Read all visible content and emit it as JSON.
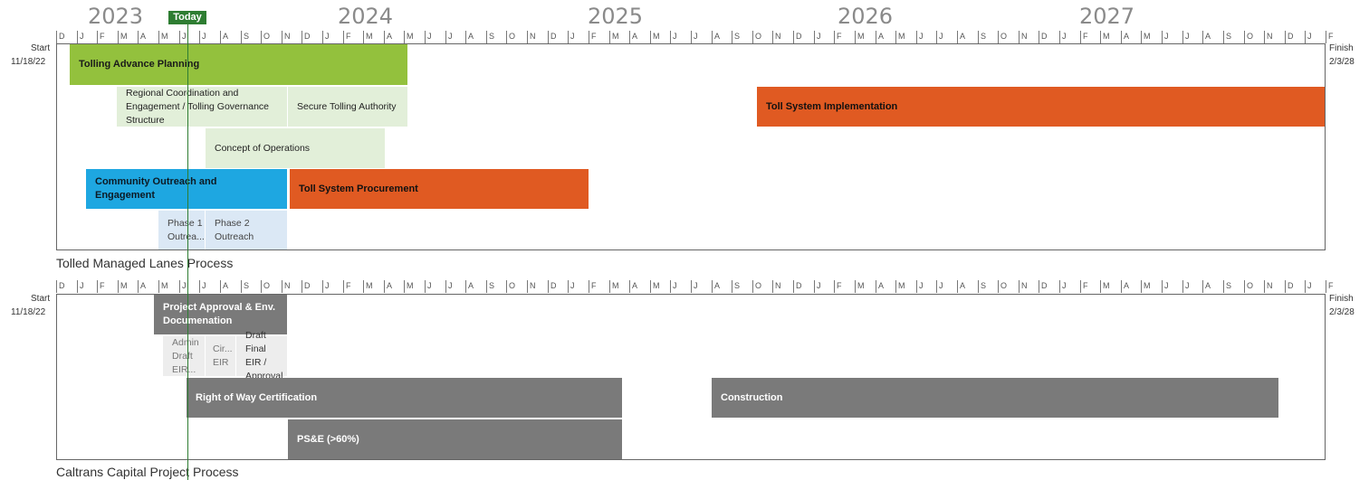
{
  "timeline": {
    "years": [
      "2023",
      "2024",
      "2025",
      "2026",
      "2027"
    ],
    "months": [
      "D",
      "J",
      "F",
      "M",
      "A",
      "M",
      "J",
      "J",
      "A",
      "S",
      "O",
      "N",
      "D",
      "J",
      "F",
      "M",
      "A",
      "M",
      "J",
      "J",
      "A",
      "S",
      "O",
      "N",
      "D",
      "J",
      "F",
      "M",
      "A",
      "M",
      "J",
      "J",
      "A",
      "S",
      "O",
      "N",
      "D",
      "J",
      "F",
      "M",
      "A",
      "M",
      "J",
      "J",
      "A",
      "S",
      "O",
      "N",
      "D",
      "J",
      "F",
      "M",
      "A",
      "M",
      "J",
      "J",
      "A",
      "S",
      "O",
      "N",
      "D",
      "J",
      "F"
    ],
    "today_label": "Today"
  },
  "tolled_panel": {
    "start_label": "Start",
    "start_date": "11/18/22",
    "finish_label": "Finish",
    "finish_date": "2/3/28",
    "section_title": "Tolled Managed Lanes Process",
    "bars": {
      "tolling_advance_planning": "Tolling Advance Planning",
      "regional_coordination": "Regional Coordination and Engagement / Tolling Governance Structure",
      "secure_tolling_authority": "Secure Tolling Authority",
      "toll_system_implementation": "Toll System Implementation",
      "concept_of_operations": "Concept of Operations",
      "community_outreach": "Community Outreach and Engagement",
      "toll_system_procurement": "Toll System Procurement",
      "phase1_outreach": "Phase 1 Outrea...",
      "phase2_outreach": "Phase 2 Outreach"
    }
  },
  "caltrans_panel": {
    "start_label": "Start",
    "start_date": "11/18/22",
    "finish_label": "Finish",
    "finish_date": "2/3/28",
    "section_title": "Caltrans Capital Project Process",
    "bars": {
      "project_approval": "Project Approval & Env. Documenation",
      "admin_draft_eir": "Admin Draft EIR...",
      "cir_eir": "Cir... EIR",
      "draft_final_eir": "Draft Final EIR / Approval",
      "right_of_way": "Right of Way Certification",
      "construction": "Construction",
      "pse": "PS&E (>60%)"
    }
  },
  "colors": {
    "green_dark": "#93c13d",
    "green_light": "#e2efd9",
    "blue": "#1ea7e1",
    "blue_light": "#dbe8f5",
    "orange": "#e05a22",
    "gray": "#7a7a7a",
    "today_green": "#2e7d32"
  }
}
